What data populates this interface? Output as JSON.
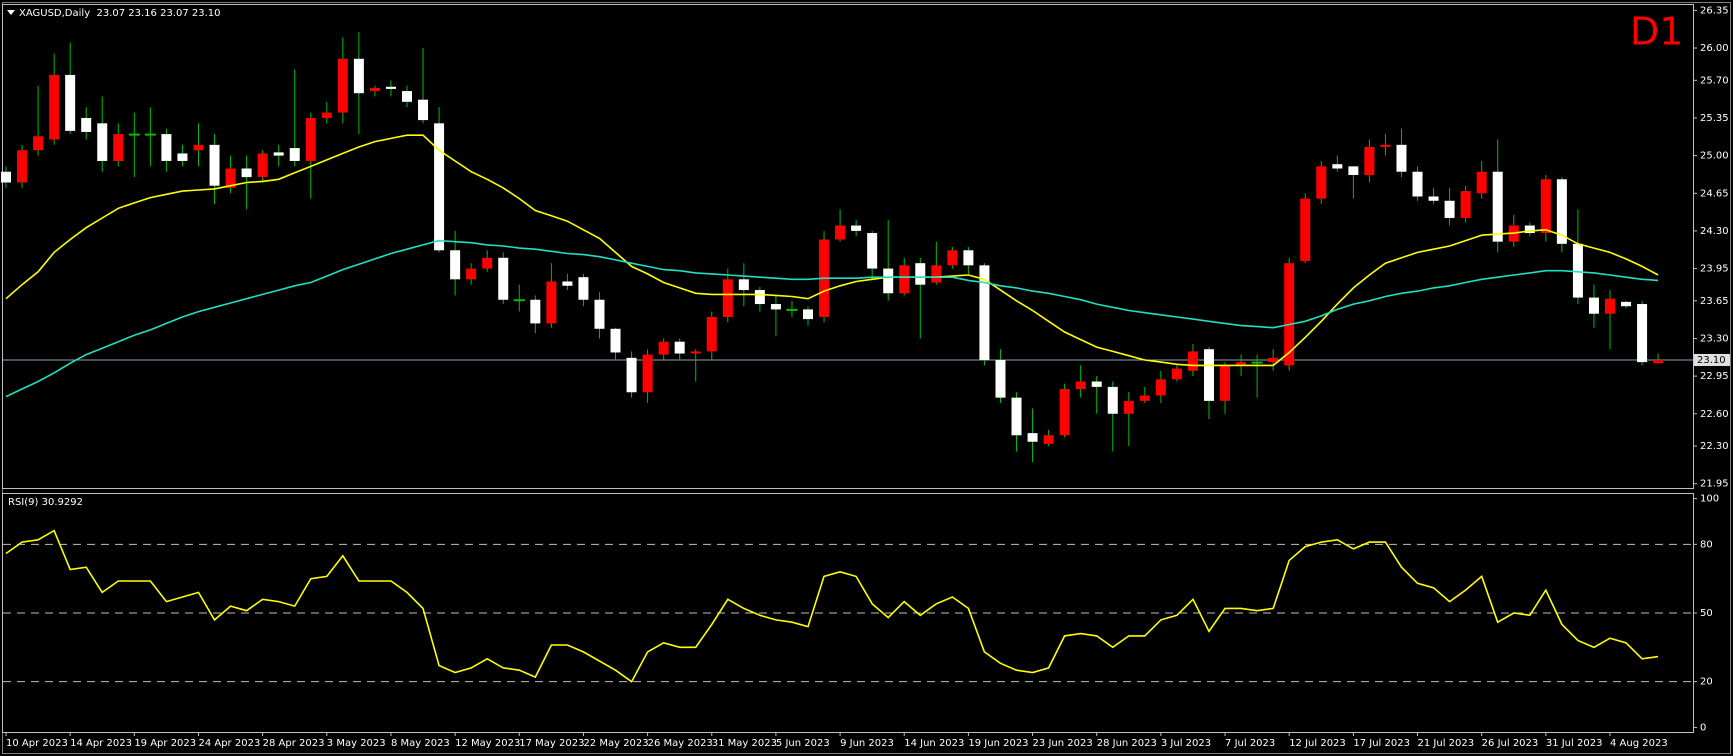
{
  "chart_data": {
    "type": "candlestick",
    "title": "XAGUSD,Daily  23.07 23.16 23.07 23.10",
    "timeframe": "D1",
    "categories": [
      "10 Apr 2023",
      null,
      null,
      null,
      "14 Apr 2023",
      null,
      null,
      null,
      "19 Apr 2023",
      null,
      null,
      null,
      "24 Apr 2023",
      null,
      null,
      null,
      "28 Apr 2023",
      null,
      null,
      null,
      "3 May 2023",
      null,
      null,
      null,
      "8 May 2023",
      null,
      null,
      null,
      "12 May 2023",
      null,
      null,
      null,
      "17 May 2023",
      null,
      null,
      null,
      "22 May 2023",
      null,
      null,
      null,
      "26 May 2023",
      null,
      null,
      null,
      "31 May 2023",
      null,
      null,
      null,
      "5 Jun 2023",
      null,
      null,
      null,
      "9 Jun 2023",
      null,
      null,
      null,
      "14 Jun 2023",
      null,
      null,
      null,
      "19 Jun 2023",
      null,
      null,
      null,
      "23 Jun 2023",
      null,
      null,
      null,
      "28 Jun 2023",
      null,
      null,
      null,
      "3 Jul 2023",
      null,
      null,
      null,
      "7 Jul 2023",
      null,
      null,
      null,
      "12 Jul 2023",
      null,
      null,
      null,
      "17 Jul 2023",
      null,
      null,
      null,
      "21 Jul 2023",
      null,
      null,
      null,
      "26 Jul 2023",
      null,
      null,
      null,
      "31 Jul 2023",
      null,
      null,
      null,
      "4 Aug 2023",
      null,
      null,
      null
    ],
    "open": [
      24.85,
      24.75,
      25.05,
      25.15,
      25.75,
      25.35,
      25.3,
      24.95,
      25.2,
      25.2,
      25.2,
      25.02,
      25.05,
      25.1,
      24.7,
      24.88,
      24.8,
      25.03,
      25.07,
      24.95,
      25.35,
      25.4,
      25.9,
      25.6,
      25.64,
      25.6,
      25.52,
      25.3,
      24.12,
      23.85,
      23.95,
      24.05,
      23.66,
      23.66,
      23.44,
      23.83,
      23.87,
      23.66,
      23.39,
      23.12,
      22.8,
      23.15,
      23.27,
      23.16,
      23.18,
      23.5,
      23.85,
      23.75,
      23.62,
      23.57,
      23.57,
      23.5,
      24.22,
      24.35,
      24.28,
      23.95,
      23.72,
      24.0,
      23.82,
      23.98,
      24.12,
      23.98,
      23.1,
      22.75,
      22.42,
      22.32,
      22.4,
      22.83,
      22.9,
      22.85,
      22.6,
      22.72,
      22.77,
      22.92,
      23.0,
      23.2,
      22.72,
      23.05,
      23.08,
      23.08,
      23.05,
      24.02,
      24.6,
      24.92,
      24.9,
      24.82,
      25.08,
      25.1,
      24.85,
      24.62,
      24.58,
      24.42,
      24.65,
      24.85,
      24.2,
      24.35,
      24.28,
      24.78,
      24.18,
      23.68,
      23.53,
      23.64,
      23.62,
      23.07
    ],
    "high": [
      24.9,
      25.1,
      25.65,
      25.95,
      26.05,
      25.45,
      25.55,
      25.3,
      25.4,
      25.45,
      25.25,
      25.1,
      25.3,
      25.2,
      25.0,
      25.0,
      25.05,
      25.1,
      25.8,
      25.4,
      25.5,
      26.1,
      26.15,
      25.65,
      25.7,
      25.65,
      26.0,
      25.45,
      24.3,
      24.0,
      24.12,
      24.1,
      23.8,
      23.7,
      24.0,
      23.9,
      23.9,
      23.73,
      23.4,
      23.18,
      23.2,
      23.3,
      23.3,
      23.2,
      23.55,
      23.95,
      24.0,
      23.78,
      23.7,
      23.65,
      23.6,
      24.3,
      24.5,
      24.4,
      24.3,
      24.4,
      24.05,
      24.05,
      24.2,
      24.15,
      24.15,
      24.0,
      23.2,
      22.8,
      22.65,
      22.45,
      22.88,
      23.05,
      22.95,
      22.9,
      22.8,
      22.85,
      23.0,
      23.05,
      23.25,
      23.22,
      23.08,
      23.15,
      23.15,
      23.2,
      24.05,
      24.65,
      24.95,
      25.0,
      24.9,
      25.15,
      25.2,
      25.25,
      24.9,
      24.7,
      24.7,
      24.72,
      24.95,
      25.15,
      24.45,
      24.38,
      24.82,
      24.8,
      24.5,
      23.8,
      23.75,
      23.65,
      23.65,
      23.16
    ],
    "low": [
      24.7,
      24.7,
      25.0,
      25.1,
      25.2,
      25.15,
      24.85,
      24.9,
      24.8,
      24.9,
      24.85,
      24.9,
      24.9,
      24.55,
      24.65,
      24.5,
      24.75,
      24.9,
      24.9,
      24.6,
      25.3,
      25.3,
      25.2,
      25.55,
      25.55,
      25.45,
      25.3,
      24.1,
      23.7,
      23.8,
      23.92,
      23.62,
      23.55,
      23.35,
      23.4,
      23.75,
      23.6,
      23.3,
      23.1,
      22.75,
      22.7,
      23.1,
      23.1,
      22.9,
      23.1,
      23.45,
      23.6,
      23.55,
      23.32,
      23.5,
      23.42,
      23.45,
      24.2,
      24.25,
      23.85,
      23.65,
      23.7,
      23.3,
      23.8,
      23.95,
      23.9,
      23.05,
      22.7,
      22.25,
      22.15,
      22.3,
      22.38,
      22.75,
      22.6,
      22.25,
      22.3,
      22.7,
      22.7,
      22.9,
      22.95,
      22.55,
      22.6,
      22.95,
      22.75,
      23.0,
      23.0,
      24.0,
      24.55,
      24.85,
      24.6,
      24.75,
      25.0,
      24.8,
      24.58,
      24.55,
      24.35,
      24.38,
      24.6,
      24.1,
      24.15,
      24.25,
      24.2,
      24.1,
      23.62,
      23.4,
      23.2,
      23.58,
      23.05,
      23.07
    ],
    "close": [
      24.75,
      25.05,
      25.18,
      25.75,
      25.23,
      25.22,
      24.95,
      25.2,
      25.2,
      25.2,
      24.95,
      24.95,
      25.1,
      24.72,
      24.88,
      24.8,
      25.02,
      25.0,
      24.95,
      25.35,
      25.4,
      25.9,
      25.58,
      25.63,
      25.62,
      25.5,
      25.33,
      24.12,
      23.85,
      23.95,
      24.05,
      23.66,
      23.66,
      23.44,
      23.83,
      23.79,
      23.66,
      23.39,
      23.17,
      22.8,
      23.15,
      23.27,
      23.16,
      23.18,
      23.5,
      23.85,
      23.75,
      23.62,
      23.57,
      23.57,
      23.48,
      24.22,
      24.35,
      24.3,
      23.95,
      23.72,
      23.98,
      23.8,
      23.98,
      24.12,
      23.98,
      23.1,
      22.75,
      22.4,
      22.34,
      22.4,
      22.83,
      22.9,
      22.85,
      22.6,
      22.72,
      22.77,
      22.92,
      23.02,
      23.18,
      22.72,
      23.05,
      23.08,
      23.08,
      23.12,
      24.0,
      24.6,
      24.9,
      24.88,
      24.82,
      25.08,
      25.1,
      24.85,
      24.62,
      24.58,
      24.42,
      24.67,
      24.85,
      24.2,
      24.35,
      24.28,
      24.78,
      24.18,
      23.68,
      23.53,
      23.67,
      23.6,
      23.08,
      23.1
    ],
    "up_color": "#ff0000",
    "down_color": "#ffffff",
    "wick_color": "#00c000",
    "ylim": [
      21.91,
      26.4
    ],
    "yticks": [
      26.35,
      {
        "value": 26.0,
        "label": "26.00"
      },
      {
        "value": 25.7,
        "label": "25.70"
      },
      25.35,
      {
        "value": 25.0,
        "label": "25.00"
      },
      24.65,
      {
        "value": 24.3,
        "label": "24.30"
      },
      23.95,
      23.65,
      {
        "value": 23.3,
        "label": "23.30"
      },
      22.95,
      {
        "value": 22.6,
        "label": "22.60"
      },
      {
        "value": 22.3,
        "label": "22.30"
      },
      21.95
    ],
    "current_price": {
      "value": 23.1,
      "label": "23.10"
    },
    "overlays": [
      {
        "color": "#ffff00",
        "values": [
          23.67,
          23.8,
          23.92,
          24.1,
          24.22,
          24.33,
          24.42,
          24.51,
          24.56,
          24.61,
          24.64,
          24.67,
          24.68,
          24.69,
          24.72,
          24.75,
          24.76,
          24.78,
          24.84,
          24.9,
          24.96,
          25.02,
          25.08,
          25.13,
          25.16,
          25.19,
          25.19,
          25.05,
          24.95,
          24.85,
          24.78,
          24.7,
          24.6,
          24.49,
          24.44,
          24.39,
          24.31,
          24.23,
          24.1,
          23.97,
          23.9,
          23.82,
          23.77,
          23.72,
          23.71,
          23.71,
          23.71,
          23.71,
          23.7,
          23.69,
          23.67,
          23.74,
          23.79,
          23.83,
          23.85,
          23.87,
          23.87,
          23.87,
          23.87,
          23.88,
          23.89,
          23.85,
          23.75,
          23.65,
          23.56,
          23.46,
          23.36,
          23.29,
          23.22,
          23.18,
          23.14,
          23.1,
          23.08,
          23.06,
          23.05,
          23.05,
          23.05,
          23.05,
          23.05,
          23.05,
          23.17,
          23.31,
          23.46,
          23.62,
          23.77,
          23.89,
          24.0,
          24.05,
          24.1,
          24.13,
          24.16,
          24.21,
          24.26,
          24.27,
          24.28,
          24.3,
          24.31,
          24.26,
          24.18,
          24.14,
          24.1,
          24.04,
          23.97,
          23.89
        ]
      },
      {
        "color": "#20e0c0",
        "values": [
          22.76,
          22.83,
          22.9,
          22.98,
          23.07,
          23.15,
          23.21,
          23.27,
          23.33,
          23.38,
          23.44,
          23.5,
          23.55,
          23.59,
          23.63,
          23.67,
          23.71,
          23.75,
          23.79,
          23.82,
          23.88,
          23.94,
          23.99,
          24.04,
          24.09,
          24.13,
          24.17,
          24.21,
          24.2,
          24.19,
          24.17,
          24.16,
          24.14,
          24.13,
          24.11,
          24.09,
          24.08,
          24.06,
          24.03,
          24.0,
          23.97,
          23.94,
          23.93,
          23.91,
          23.9,
          23.89,
          23.88,
          23.87,
          23.86,
          23.85,
          23.85,
          23.86,
          23.86,
          23.86,
          23.87,
          23.87,
          23.87,
          23.87,
          23.87,
          23.87,
          23.84,
          23.82,
          23.79,
          23.77,
          23.74,
          23.72,
          23.69,
          23.66,
          23.62,
          23.59,
          23.56,
          23.54,
          23.52,
          23.5,
          23.48,
          23.46,
          23.44,
          23.42,
          23.41,
          23.4,
          23.43,
          23.46,
          23.51,
          23.57,
          23.62,
          23.65,
          23.69,
          23.72,
          23.74,
          23.77,
          23.79,
          23.82,
          23.85,
          23.87,
          23.89,
          23.91,
          23.93,
          23.93,
          23.92,
          23.91,
          23.89,
          23.87,
          23.85,
          23.84
        ]
      }
    ],
    "rsi": {
      "label": "RSI(9) 30.9292",
      "color": "#ffff00",
      "values": [
        76,
        81,
        82,
        86,
        69,
        70,
        59,
        64,
        64,
        64,
        55,
        57,
        59,
        47,
        53,
        51,
        56,
        55,
        53,
        65,
        66,
        75,
        64,
        64,
        64,
        59,
        52,
        27,
        24,
        26,
        30,
        26,
        25,
        22,
        36,
        36,
        33,
        29,
        25,
        20,
        33,
        37,
        35,
        35,
        45,
        56,
        52,
        49,
        47,
        46,
        44,
        66,
        68,
        66,
        54,
        48,
        55,
        49,
        54,
        57,
        52,
        33,
        28,
        25,
        24,
        26,
        40,
        41,
        40,
        35,
        40,
        40,
        47,
        49,
        56,
        42,
        52,
        52,
        51,
        52,
        73,
        79,
        81,
        82,
        78,
        81,
        81,
        70,
        63,
        61,
        55,
        60,
        66,
        46,
        50,
        49,
        60,
        45,
        38,
        35,
        39,
        37,
        30,
        30.9292
      ],
      "ylim": [
        -2,
        102
      ],
      "yticks": [
        0,
        20,
        50,
        80,
        100
      ],
      "levels": [
        20,
        50,
        80
      ]
    }
  }
}
